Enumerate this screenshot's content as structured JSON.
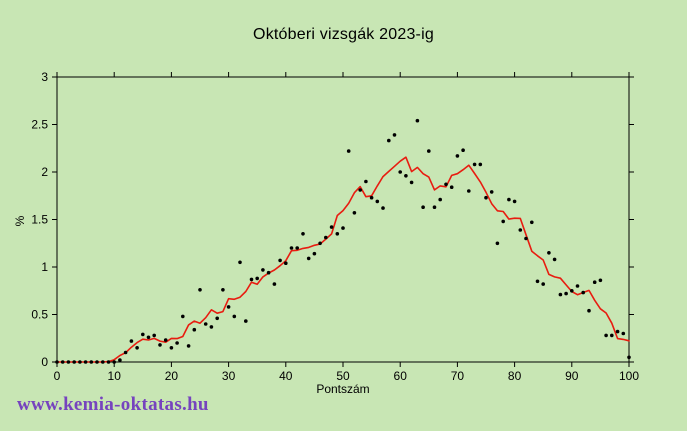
{
  "colors": {
    "background": "#c8e6b4",
    "axis": "#000000",
    "scatter_dots": "#000000",
    "trend_line": "#e81c10",
    "watermark": "#7643be",
    "title_text": "#000000"
  },
  "watermark": {
    "text": "www.kemia-oktatas.hu"
  },
  "chart_data": {
    "type": "scatter",
    "title": "Októberi vizsgák 2023-ig",
    "xlabel": "Pontszám",
    "ylabel": "%",
    "xlim": [
      0,
      100
    ],
    "ylim": [
      0,
      3
    ],
    "xticks": [
      0,
      10,
      20,
      30,
      40,
      50,
      60,
      70,
      80,
      90,
      100
    ],
    "yticks": [
      0,
      0.5,
      1,
      1.5,
      2,
      2.5,
      3
    ],
    "grid": false,
    "legend": "none",
    "series": [
      {
        "name": "vizsga-eloszlas-pontok",
        "type": "scatter",
        "marker": "dot",
        "color": "#000000",
        "x_start": 0,
        "x_step": 1,
        "values": [
          0,
          0,
          0,
          0,
          0,
          0,
          0,
          0,
          0,
          0,
          0,
          0.02,
          0.1,
          0.22,
          0.15,
          0.29,
          0.26,
          0.28,
          0.18,
          0.23,
          0.15,
          0.2,
          0.48,
          0.17,
          0.34,
          0.76,
          0.4,
          0.37,
          0.46,
          0.76,
          0.58,
          0.48,
          1.05,
          0.43,
          0.87,
          0.88,
          0.97,
          0.94,
          0.82,
          1.07,
          1.04,
          1.2,
          1.2,
          1.35,
          1.09,
          1.14,
          1.25,
          1.31,
          1.42,
          1.35,
          1.41,
          2.22,
          1.57,
          1.81,
          1.9,
          1.73,
          1.69,
          1.62,
          2.33,
          2.39,
          2.0,
          1.96,
          1.89,
          2.54,
          1.63,
          2.22,
          1.63,
          1.71,
          1.87,
          1.84,
          2.17,
          2.23,
          1.8,
          2.08,
          2.08,
          1.73,
          1.79,
          1.25,
          1.48,
          1.71,
          1.69,
          1.39,
          1.3,
          1.47,
          0.85,
          0.82,
          1.15,
          1.08,
          0.71,
          0.72,
          0.75,
          0.8,
          0.73,
          0.54,
          0.84,
          0.86,
          0.28,
          0.28,
          0.32,
          0.3,
          0.05
        ]
      },
      {
        "name": "simitott-trend-vonal",
        "type": "line",
        "color": "#e81c10",
        "derived_from": "vizsga-eloszlas-pontok",
        "smoothing": "centered moving average, window 5"
      }
    ]
  }
}
